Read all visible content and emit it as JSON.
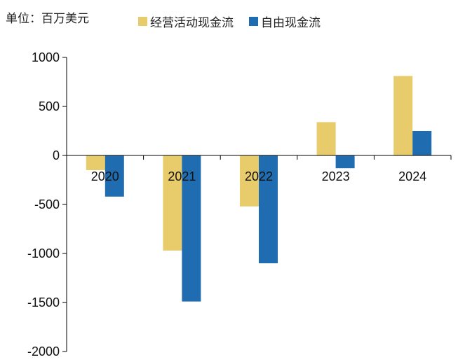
{
  "unit_label": "单位：百万美元",
  "colors": {
    "operating": "#E8CB6A",
    "free": "#1F6DB0"
  },
  "chart_data": {
    "type": "bar",
    "categories": [
      "2020",
      "2021",
      "2022",
      "2023",
      "2024"
    ],
    "series": [
      {
        "name": "经营活动现金流",
        "values": [
          -150,
          -970,
          -520,
          340,
          810
        ]
      },
      {
        "name": "自由现金流",
        "values": [
          -420,
          -1490,
          -1100,
          -130,
          250
        ]
      }
    ],
    "yticks": [
      "1000",
      "500",
      "0",
      "-500",
      "-1000",
      "-1500",
      "-2000"
    ],
    "ylim": [
      -2000,
      1000
    ],
    "legend": "top",
    "grid": false
  }
}
